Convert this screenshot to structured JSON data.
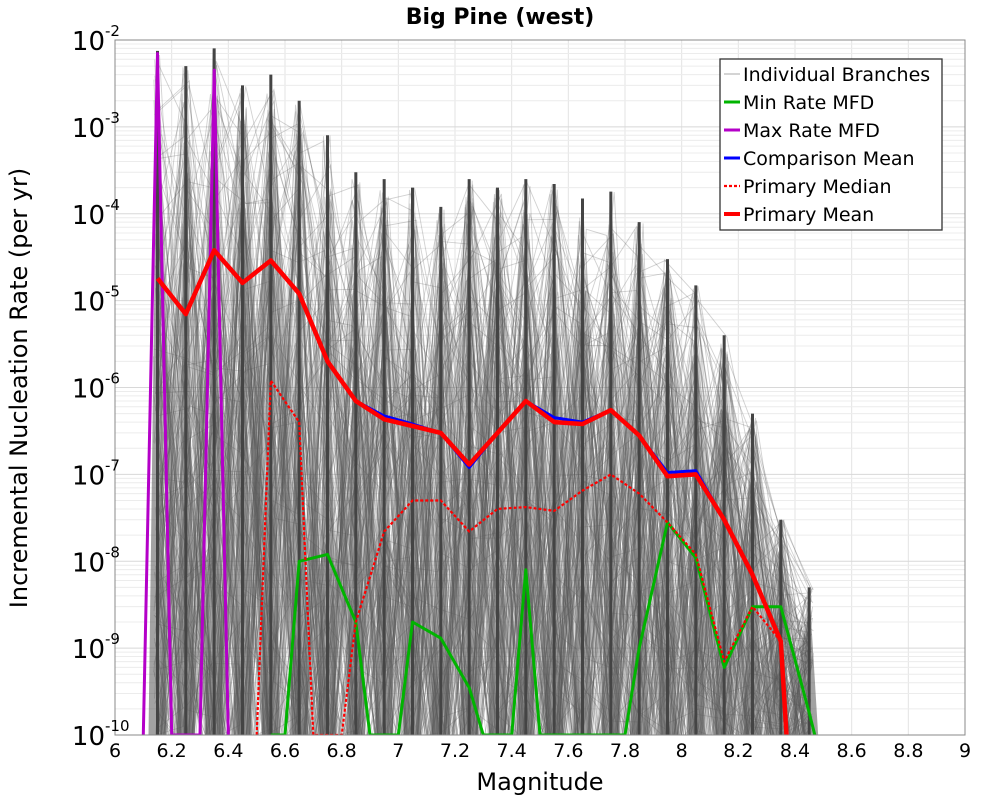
{
  "chart_data": {
    "type": "line",
    "title": "Big Pine (west)",
    "xlabel": "Magnitude",
    "ylabel": "Incremental Nucleation Rate (per yr)",
    "xlim": [
      6,
      9
    ],
    "ylim_log10": [
      -10,
      -2
    ],
    "x_ticks": [
      "6",
      "6.2",
      "6.4",
      "6.6",
      "6.8",
      "7",
      "7.2",
      "7.4",
      "7.6",
      "7.8",
      "8",
      "8.2",
      "8.4",
      "8.6",
      "8.8",
      "9"
    ],
    "y_ticks": [
      {
        "base": "10",
        "exp": "-10"
      },
      {
        "base": "10",
        "exp": "-9"
      },
      {
        "base": "10",
        "exp": "-8"
      },
      {
        "base": "10",
        "exp": "-7"
      },
      {
        "base": "10",
        "exp": "-6"
      },
      {
        "base": "10",
        "exp": "-5"
      },
      {
        "base": "10",
        "exp": "-4"
      },
      {
        "base": "10",
        "exp": "-3"
      },
      {
        "base": "10",
        "exp": "-2"
      }
    ],
    "grid": true,
    "legend_position": "top-right",
    "legend": [
      "Individual Branches",
      "Min Rate MFD",
      "Max Rate MFD",
      "Comparison Mean",
      "Primary Median",
      "Primary Mean"
    ],
    "series": [
      {
        "name": "Individual Branches",
        "color": "#555555",
        "style": "thin",
        "x": [
          6.15,
          6.25,
          6.35,
          6.45,
          6.55,
          6.65,
          6.75,
          6.85,
          6.95,
          7.05,
          7.15,
          7.25,
          7.35,
          7.45,
          7.55,
          7.65,
          7.75,
          7.85,
          7.95,
          8.05,
          8.15,
          8.25,
          8.35,
          8.45
        ],
        "upper_envelope": [
          0.0075,
          0.005,
          0.008,
          0.003,
          0.004,
          0.002,
          0.0008,
          0.0003,
          0.00025,
          0.0002,
          0.00012,
          0.00025,
          0.0002,
          0.00025,
          0.00022,
          0.00015,
          0.00018,
          8e-05,
          3e-05,
          1.5e-05,
          4e-06,
          5e-07,
          3e-08,
          5e-09
        ]
      },
      {
        "name": "Min Rate MFD",
        "color": "#00b400",
        "style": "solid",
        "x": [
          6.55,
          6.6,
          6.65,
          6.75,
          6.85,
          6.9,
          7.0,
          7.05,
          7.15,
          7.25,
          7.3,
          7.35,
          7.4,
          7.45,
          7.5,
          7.8,
          7.85,
          7.95,
          8.05,
          8.15,
          8.25,
          8.35,
          8.45,
          8.47
        ],
        "values": [
          1e-10,
          1e-10,
          1e-08,
          1.2e-08,
          2e-09,
          1e-10,
          1e-10,
          2e-09,
          1.3e-09,
          3.5e-10,
          1e-10,
          1e-10,
          1e-10,
          8e-09,
          1e-10,
          1e-10,
          1e-09,
          2.8e-08,
          1.1e-08,
          6e-10,
          3e-09,
          3e-09,
          1.8e-10,
          1e-10
        ]
      },
      {
        "name": "Max Rate MFD",
        "color": "#b400c8",
        "style": "solid",
        "x": [
          6.1,
          6.15,
          6.2,
          6.3,
          6.35,
          6.4
        ],
        "values": [
          1e-10,
          0.007,
          1e-10,
          1e-10,
          0.0045,
          1e-10
        ]
      },
      {
        "name": "Comparison Mean",
        "color": "#0000ff",
        "style": "solid",
        "x": [
          6.15,
          6.25,
          6.35,
          6.45,
          6.55,
          6.65,
          6.75,
          6.85,
          6.95,
          7.05,
          7.15,
          7.25,
          7.35,
          7.45,
          7.55,
          7.65,
          7.75,
          7.85,
          7.95,
          8.05,
          8.15,
          8.25,
          8.35,
          8.37
        ],
        "values": [
          1.8e-05,
          7e-06,
          3.8e-05,
          1.6e-05,
          2.9e-05,
          1.2e-05,
          2e-06,
          7e-07,
          4.7e-07,
          3.8e-07,
          3e-07,
          1.2e-07,
          3e-07,
          7e-07,
          4.5e-07,
          4e-07,
          5.5e-07,
          2.8e-07,
          1.05e-07,
          1.1e-07,
          3e-08,
          7e-09,
          1.2e-09,
          1e-10
        ]
      },
      {
        "name": "Primary Median",
        "color": "#ff0000",
        "style": "dotted",
        "x": [
          6.5,
          6.55,
          6.65,
          6.7,
          6.8,
          6.85,
          6.95,
          7.05,
          7.15,
          7.25,
          7.35,
          7.45,
          7.55,
          7.65,
          7.75,
          7.85,
          7.95,
          8.05,
          8.15,
          8.25,
          8.35,
          8.37
        ],
        "values": [
          1e-10,
          1.2e-06,
          4e-07,
          1e-10,
          1e-10,
          2e-09,
          2.2e-08,
          5e-08,
          5e-08,
          2.2e-08,
          4e-08,
          4.2e-08,
          3.8e-08,
          6.5e-08,
          1e-07,
          6e-08,
          2.8e-08,
          1.2e-08,
          7e-10,
          3e-09,
          1.2e-09,
          1e-10
        ]
      },
      {
        "name": "Primary Mean",
        "color": "#ff0000",
        "style": "thick",
        "x": [
          6.15,
          6.25,
          6.35,
          6.45,
          6.55,
          6.65,
          6.75,
          6.85,
          6.95,
          7.05,
          7.15,
          7.25,
          7.35,
          7.45,
          7.55,
          7.65,
          7.75,
          7.85,
          7.95,
          8.05,
          8.15,
          8.25,
          8.35,
          8.37
        ],
        "values": [
          1.8e-05,
          7e-06,
          3.8e-05,
          1.6e-05,
          2.9e-05,
          1.2e-05,
          2e-06,
          7e-07,
          4.3e-07,
          3.6e-07,
          3e-07,
          1.3e-07,
          3e-07,
          7e-07,
          4e-07,
          3.8e-07,
          5.5e-07,
          2.8e-07,
          9.5e-08,
          1e-07,
          3e-08,
          7e-09,
          1.2e-09,
          1e-10
        ]
      }
    ]
  }
}
